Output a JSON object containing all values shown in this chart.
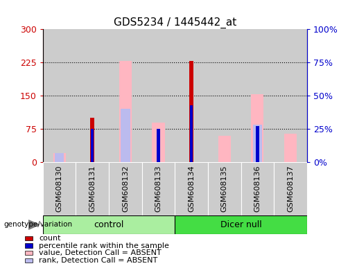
{
  "title": "GDS5234 / 1445442_at",
  "samples": [
    "GSM608130",
    "GSM608131",
    "GSM608132",
    "GSM608133",
    "GSM608134",
    "GSM608135",
    "GSM608136",
    "GSM608137"
  ],
  "count_values": [
    0,
    100,
    0,
    0,
    228,
    0,
    0,
    0
  ],
  "percentile_rank_pct": [
    0,
    25,
    0,
    25,
    43,
    0,
    27,
    0
  ],
  "absent_value_values": [
    20,
    0,
    228,
    90,
    0,
    60,
    153,
    65
  ],
  "absent_rank_pct": [
    7,
    0,
    40,
    0,
    0,
    0,
    28,
    0
  ],
  "left_yticks": [
    0,
    75,
    150,
    225,
    300
  ],
  "right_yticks": [
    0,
    25,
    50,
    75,
    100
  ],
  "right_ylabels": [
    "0%",
    "25%",
    "50%",
    "75%",
    "100%"
  ],
  "left_color": "#CC0000",
  "right_color": "#0000CC",
  "legend_entries": [
    {
      "label": "count",
      "color": "#CC0000"
    },
    {
      "label": "percentile rank within the sample",
      "color": "#0000CC"
    },
    {
      "label": "value, Detection Call = ABSENT",
      "color": "#FFB6C1"
    },
    {
      "label": "rank, Detection Call = ABSENT",
      "color": "#BBBBEE"
    }
  ],
  "ylim": [
    0,
    300
  ],
  "right_ylim": [
    0,
    100
  ],
  "ctrl_color": "#AAEEA0",
  "dicer_color": "#44DD44",
  "grey_bg": "#CCCCCC"
}
